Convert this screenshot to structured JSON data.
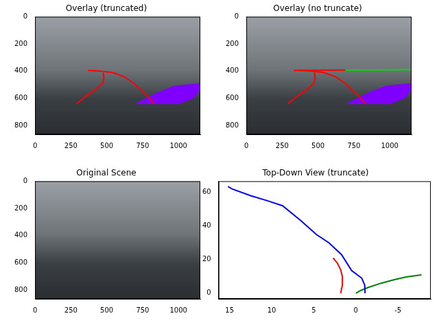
{
  "chart_data": [
    {
      "type": "image_overlay",
      "title": "Overlay (truncated)",
      "xlim": [
        0,
        1152
      ],
      "xticks": [
        0,
        250,
        500,
        750,
        1000
      ],
      "ylim": [
        864,
        0
      ],
      "yticks": [
        0,
        200,
        400,
        600,
        800
      ],
      "series": [
        {
          "type": "line",
          "color": "#ff0000",
          "x": [
            290,
            360,
            430,
            470,
            480,
            475
          ],
          "values": [
            640,
            580,
            530,
            490,
            450,
            410
          ]
        },
        {
          "type": "line",
          "color": "#ff0000",
          "x": [
            370,
            450,
            540,
            620,
            690,
            750,
            800,
            830
          ],
          "values": [
            395,
            400,
            410,
            440,
            490,
            550,
            600,
            640
          ]
        },
        {
          "type": "area",
          "color": "#8000ff",
          "x": [
            700,
            850,
            970,
            1150,
            1150,
            1100,
            1000,
            700
          ],
          "values": [
            640,
            560,
            510,
            490,
            540,
            600,
            640,
            640
          ]
        }
      ]
    },
    {
      "type": "image_overlay",
      "title": "Overlay (no truncate)",
      "xlim": [
        0,
        1152
      ],
      "xticks": [
        0,
        250,
        500,
        750,
        1000
      ],
      "ylim": [
        864,
        0
      ],
      "yticks": [
        0,
        200,
        400,
        600,
        800
      ],
      "series": [
        {
          "type": "line",
          "color": "#ff0000",
          "x": [
            290,
            360,
            430,
            470,
            480,
            475
          ],
          "values": [
            640,
            580,
            530,
            490,
            450,
            410
          ]
        },
        {
          "type": "line",
          "color": "#ff0000",
          "x": [
            370,
            450,
            540,
            620,
            690,
            750,
            800,
            830
          ],
          "values": [
            395,
            400,
            410,
            440,
            490,
            550,
            600,
            640
          ]
        },
        {
          "type": "line",
          "color": "#ff0000",
          "x": [
            330,
            690
          ],
          "values": [
            395,
            392
          ]
        },
        {
          "type": "line",
          "color": "#00dd00",
          "x": [
            690,
            1150
          ],
          "values": [
            392,
            388
          ]
        },
        {
          "type": "area",
          "color": "#8000ff",
          "x": [
            700,
            850,
            970,
            1150,
            1150,
            1100,
            1000,
            700
          ],
          "values": [
            640,
            560,
            510,
            490,
            540,
            600,
            640,
            640
          ]
        }
      ]
    },
    {
      "type": "image_overlay",
      "title": "Original Scene",
      "xlim": [
        0,
        1152
      ],
      "xticks": [
        0,
        250,
        500,
        750,
        1000
      ],
      "ylim": [
        864,
        0
      ],
      "yticks": [
        0,
        200,
        400,
        600,
        800
      ],
      "series": []
    },
    {
      "type": "line",
      "title": "Top-Down View (truncate)",
      "xlim": [
        16.3,
        -8.9
      ],
      "xticks": [
        15,
        10,
        5,
        0,
        -5
      ],
      "ylim": [
        -3.3,
        66.6
      ],
      "yticks": [
        0,
        20,
        40,
        60
      ],
      "series": [
        {
          "type": "line",
          "color": "#0000ff",
          "x": [
            -1.1,
            -1.05,
            -0.7,
            0.5,
            1.7,
            3.2,
            4.7,
            6.5,
            8.7,
            10.5,
            12.5,
            14.7,
            15.2
          ],
          "values": [
            0,
            5,
            9,
            13.5,
            23,
            30,
            35,
            43,
            52,
            55,
            58,
            62,
            63.5
          ]
        },
        {
          "type": "line",
          "color": "#ff0000",
          "x": [
            1.8,
            1.6,
            1.6,
            1.8,
            2.2,
            2.7
          ],
          "values": [
            0,
            5,
            10,
            14,
            18,
            21
          ]
        },
        {
          "type": "line",
          "color": "#008000",
          "x": [
            0,
            -0.5,
            -1.5,
            -3,
            -4.5,
            -6,
            -7.8
          ],
          "values": [
            0,
            1.5,
            3.5,
            6,
            8,
            9.7,
            11
          ]
        }
      ]
    }
  ]
}
